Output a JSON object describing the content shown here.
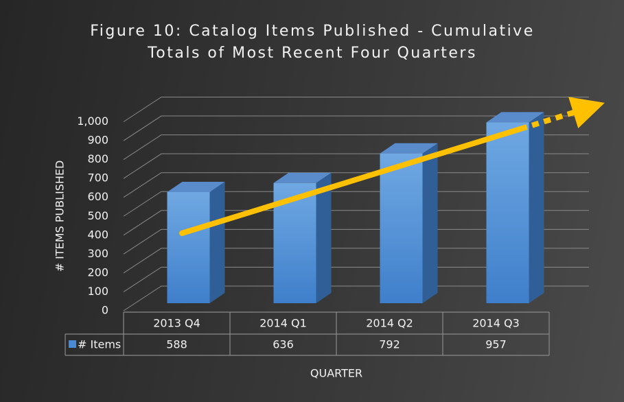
{
  "chart_data": {
    "type": "bar3d",
    "title": "Figure 10: Catalog Items Published - Cumulative Totals of Most Recent Four Quarters",
    "categories": [
      "2013 Q4",
      "2014 Q1",
      "2014 Q2",
      "2014 Q3"
    ],
    "series": [
      {
        "name": "# Items",
        "color": "#4a8ad4",
        "values": [
          588,
          636,
          792,
          957
        ]
      }
    ],
    "ylim": [
      0,
      1000
    ],
    "yticks": [
      0,
      100,
      200,
      300,
      400,
      500,
      600,
      700,
      800,
      900,
      {
        "value": 1000,
        "label": "1,000"
      }
    ],
    "ylabel": "# ITEMS PUBLISHED",
    "xlabel": "QUARTER",
    "grid": true
  }
}
